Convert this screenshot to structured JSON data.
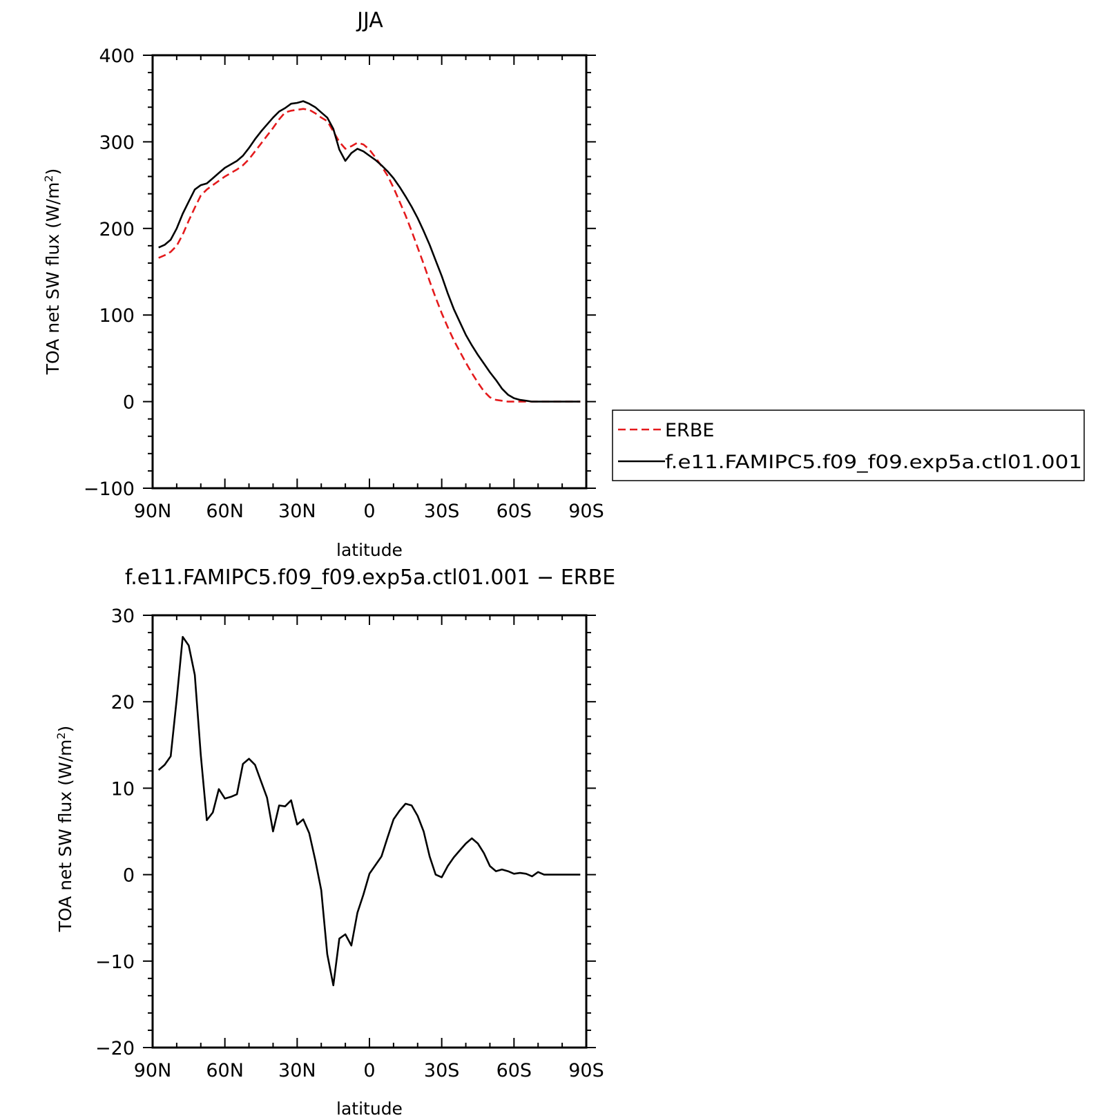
{
  "chart_data": [
    {
      "type": "line",
      "title": "JJA",
      "xlabel": "latitude",
      "ylabel_main": "TOA net SW flux (W/m",
      "ylabel_sup": "2",
      "ylabel_close": ")",
      "xlim": [
        90,
        -90
      ],
      "ylim": [
        -100,
        400
      ],
      "x_ticks": [
        {
          "v": 90,
          "label": "90N"
        },
        {
          "v": 60,
          "label": "60N"
        },
        {
          "v": 30,
          "label": "30N"
        },
        {
          "v": 0,
          "label": "0"
        },
        {
          "v": -30,
          "label": "30S"
        },
        {
          "v": -60,
          "label": "60S"
        },
        {
          "v": -90,
          "label": "90S"
        }
      ],
      "y_ticks": [
        {
          "v": 400,
          "label": "400"
        },
        {
          "v": 300,
          "label": "300"
        },
        {
          "v": 200,
          "label": "200"
        },
        {
          "v": 100,
          "label": "100"
        },
        {
          "v": 0,
          "label": "0"
        },
        {
          "v": -100,
          "label": "−100"
        }
      ],
      "legend": {
        "placement": "right"
      },
      "series": [
        {
          "name": "ERBE",
          "color": "#e41a1c",
          "dash": true,
          "x": [
            87.5,
            85,
            82.5,
            80,
            77.5,
            75,
            72.5,
            70,
            67.5,
            65,
            62.5,
            60,
            57.5,
            55,
            52.5,
            50,
            47.5,
            45,
            42.5,
            40,
            37.5,
            35,
            32.5,
            30,
            27.5,
            25,
            22.5,
            20,
            17.5,
            15,
            12.5,
            10,
            7.5,
            5,
            2.5,
            0,
            -2.5,
            -5,
            -7.5,
            -10,
            -12.5,
            -15,
            -17.5,
            -20,
            -22.5,
            -25,
            -27.5,
            -30,
            -32.5,
            -35,
            -37.5,
            -40,
            -42.5,
            -45,
            -47.5,
            -50,
            -52.5,
            -55,
            -57.5,
            -60,
            -62.5,
            -65,
            -67.5,
            -70,
            -72.5,
            -75,
            -77.5,
            -80,
            -82.5,
            -85,
            -87.5
          ],
          "y": [
            166,
            169,
            173,
            180,
            193,
            209,
            224,
            238,
            245,
            250,
            255,
            260,
            264,
            268,
            273,
            280,
            289,
            298,
            307,
            316,
            326,
            334,
            336,
            337,
            338,
            337,
            333,
            328,
            324,
            312,
            300,
            292,
            295,
            299,
            297,
            291,
            282,
            272,
            261,
            247,
            231,
            215,
            197,
            178,
            159,
            139,
            120,
            102,
            86,
            71,
            58,
            45,
            33,
            22,
            12,
            5,
            2,
            1,
            0,
            0,
            0,
            0,
            0,
            0,
            0,
            0,
            0,
            0,
            0,
            0,
            0
          ]
        },
        {
          "name": "f.e11.FAMIPC5.f09_f09.exp5a.ctl01.001",
          "color": "#000000",
          "dash": false,
          "x": [
            87.5,
            85,
            82.5,
            80,
            77.5,
            75,
            72.5,
            70,
            67.5,
            65,
            62.5,
            60,
            57.5,
            55,
            52.5,
            50,
            47.5,
            45,
            42.5,
            40,
            37.5,
            35,
            32.5,
            30,
            27.5,
            25,
            22.5,
            20,
            17.5,
            15,
            12.5,
            10,
            7.5,
            5,
            2.5,
            0,
            -2.5,
            -5,
            -7.5,
            -10,
            -12.5,
            -15,
            -17.5,
            -20,
            -22.5,
            -25,
            -27.5,
            -30,
            -32.5,
            -35,
            -37.5,
            -40,
            -42.5,
            -45,
            -47.5,
            -50,
            -52.5,
            -55,
            -57.5,
            -60,
            -62.5,
            -65,
            -67.5,
            -70,
            -72.5,
            -75,
            -77.5,
            -80,
            -82.5,
            -85,
            -87.5
          ],
          "y": [
            178,
            181,
            187,
            200,
            217,
            231,
            245,
            250,
            252,
            258,
            264,
            270,
            274,
            278,
            284,
            293,
            303,
            312,
            320,
            328,
            335,
            339,
            344,
            345,
            347,
            344,
            340,
            334,
            328,
            315,
            291,
            278,
            287,
            292,
            289,
            284,
            279,
            273,
            266,
            258,
            248,
            237,
            225,
            212,
            197,
            181,
            163,
            145,
            125,
            107,
            92,
            77,
            65,
            54,
            44,
            34,
            25,
            15,
            8,
            4,
            2,
            1,
            0,
            0,
            0,
            0,
            0,
            0,
            0,
            0,
            0
          ]
        }
      ]
    },
    {
      "type": "line",
      "title": "f.e11.FAMIPC5.f09_f09.exp5a.ctl01.001 − ERBE",
      "xlabel": "latitude",
      "ylabel_main": "TOA net SW flux (W/m",
      "ylabel_sup": "2",
      "ylabel_close": ")",
      "xlim": [
        90,
        -90
      ],
      "ylim": [
        -20,
        30
      ],
      "x_ticks": [
        {
          "v": 90,
          "label": "90N"
        },
        {
          "v": 60,
          "label": "60N"
        },
        {
          "v": 30,
          "label": "30N"
        },
        {
          "v": 0,
          "label": "0"
        },
        {
          "v": -30,
          "label": "30S"
        },
        {
          "v": -60,
          "label": "60S"
        },
        {
          "v": -90,
          "label": "90S"
        }
      ],
      "y_ticks": [
        {
          "v": 30,
          "label": "30"
        },
        {
          "v": 20,
          "label": "20"
        },
        {
          "v": 10,
          "label": "10"
        },
        {
          "v": 0,
          "label": "0"
        },
        {
          "v": -10,
          "label": "−10"
        },
        {
          "v": -20,
          "label": "−20"
        }
      ],
      "series": [
        {
          "color": "#000000",
          "dash": false,
          "x": [
            87.5,
            85,
            82.5,
            80,
            77.5,
            75,
            72.5,
            70,
            67.5,
            65,
            62.5,
            60,
            57.5,
            55,
            52.5,
            50,
            47.5,
            45,
            42.5,
            40,
            37.5,
            35,
            32.5,
            30,
            27.5,
            25,
            22.5,
            20,
            17.5,
            15,
            12.5,
            10,
            7.5,
            5,
            2.5,
            0,
            -2.5,
            -5,
            -7.5,
            -10,
            -12.5,
            -15,
            -17.5,
            -20,
            -22.5,
            -25,
            -27.5,
            -30,
            -32.5,
            -35,
            -37.5,
            -40,
            -42.5,
            -45,
            -47.5,
            -50,
            -52.5,
            -55,
            -57.5,
            -60,
            -62.5,
            -65,
            -67.5,
            -70,
            -72.5,
            -75,
            -77.5,
            -80,
            -82.5,
            -85,
            -87.5
          ],
          "y": [
            12.1,
            12.7,
            13.7,
            20.3,
            27.5,
            26.5,
            23.1,
            13.8,
            6.3,
            7.2,
            9.9,
            8.8,
            9.0,
            9.3,
            12.8,
            13.4,
            12.7,
            10.8,
            8.9,
            5.0,
            8.0,
            7.9,
            8.6,
            5.8,
            6.4,
            4.8,
            1.7,
            -1.8,
            -9.2,
            -12.8,
            -7.4,
            -6.9,
            -8.2,
            -4.4,
            -2.3,
            0.1,
            1.1,
            2.1,
            4.3,
            6.4,
            7.4,
            8.2,
            8.0,
            6.8,
            5.0,
            2.1,
            0.0,
            -0.3,
            1.0,
            2.0,
            2.8,
            3.6,
            4.2,
            3.6,
            2.5,
            1.0,
            0.4,
            0.6,
            0.4,
            0.1,
            0.2,
            0.1,
            -0.2,
            0.3,
            0.0,
            0.0,
            0.0,
            0.0,
            0.0,
            0.0,
            0.0
          ]
        }
      ]
    }
  ]
}
